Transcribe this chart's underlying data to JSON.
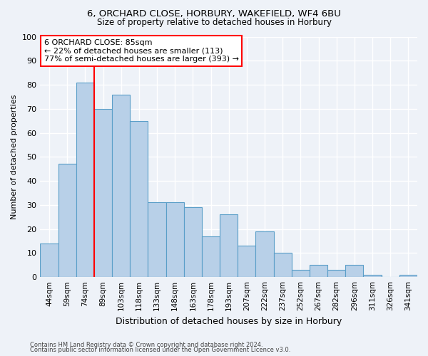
{
  "title1": "6, ORCHARD CLOSE, HORBURY, WAKEFIELD, WF4 6BU",
  "title2": "Size of property relative to detached houses in Horbury",
  "xlabel": "Distribution of detached houses by size in Horbury",
  "ylabel": "Number of detached properties",
  "categories": [
    "44sqm",
    "59sqm",
    "74sqm",
    "89sqm",
    "103sqm",
    "118sqm",
    "133sqm",
    "148sqm",
    "163sqm",
    "178sqm",
    "193sqm",
    "207sqm",
    "222sqm",
    "237sqm",
    "252sqm",
    "267sqm",
    "282sqm",
    "296sqm",
    "311sqm",
    "326sqm",
    "341sqm"
  ],
  "values": [
    14,
    47,
    81,
    70,
    76,
    65,
    31,
    31,
    29,
    17,
    26,
    13,
    19,
    10,
    3,
    5,
    3,
    5,
    1,
    0,
    1
  ],
  "bar_color": "#b8d0e8",
  "bar_edge_color": "#5a9ec8",
  "background_color": "#eef2f8",
  "grid_color": "#ffffff",
  "vline_x_index": 3,
  "vline_color": "red",
  "annotation_text": "6 ORCHARD CLOSE: 85sqm\n← 22% of detached houses are smaller (113)\n77% of semi-detached houses are larger (393) →",
  "annotation_box_color": "white",
  "annotation_box_edge": "red",
  "ylim": [
    0,
    100
  ],
  "yticks": [
    0,
    10,
    20,
    30,
    40,
    50,
    60,
    70,
    80,
    90,
    100
  ],
  "footer1": "Contains HM Land Registry data © Crown copyright and database right 2024.",
  "footer2": "Contains public sector information licensed under the Open Government Licence v3.0."
}
